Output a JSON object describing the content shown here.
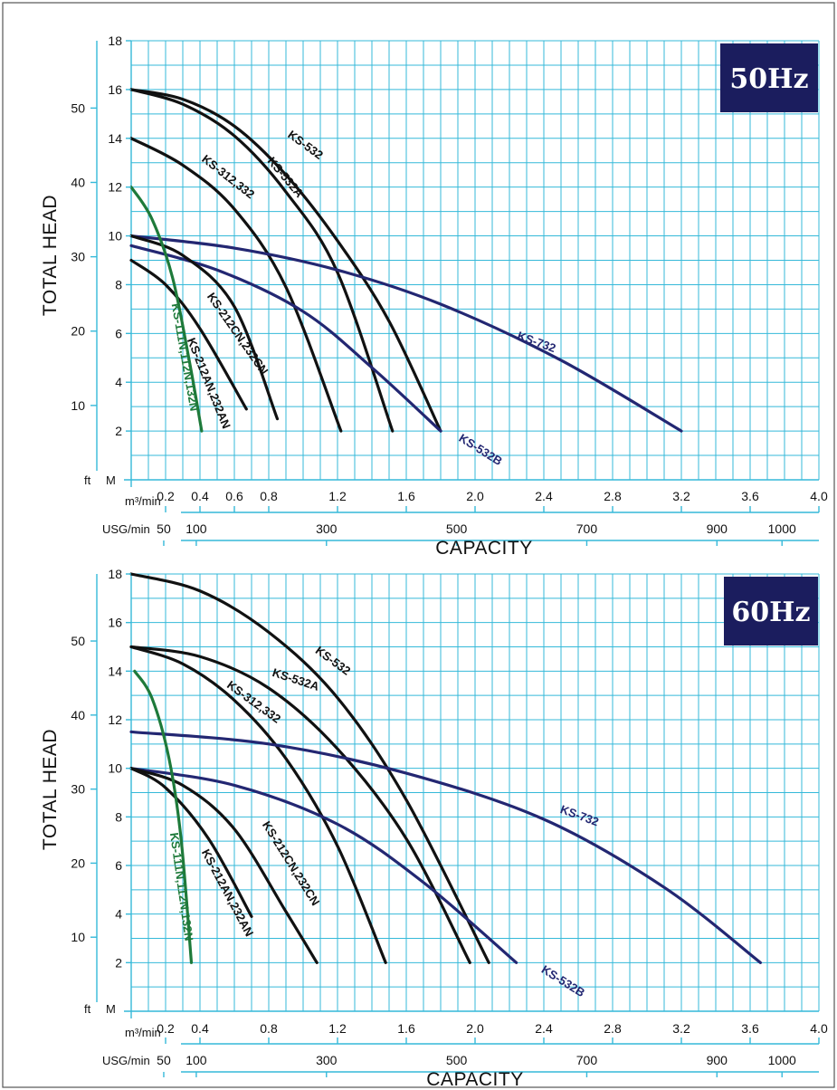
{
  "colors": {
    "grid": "#35b9d9",
    "black": "#111111",
    "navy": "#232772",
    "green": "#1e7a3a",
    "badge": "#1b1d5e"
  },
  "labels": {
    "y_title": "TOTAL HEAD",
    "x_title": "CAPACITY",
    "m3_unit": "m³/min",
    "usg_unit": "USG/min",
    "m_unit": "M",
    "ft_unit": "ft"
  },
  "chart_data": [
    {
      "type": "line",
      "title": "50Hz",
      "xlabel": "CAPACITY",
      "ylabel": "TOTAL HEAD",
      "xlim": [
        0,
        4.0
      ],
      "ylim": [
        0,
        18
      ],
      "grid": true,
      "x_ticks": [
        "0.2",
        "0.4",
        "0.6",
        "0.8",
        "1.2",
        "1.6",
        "2.0",
        "2.4",
        "2.8",
        "3.2",
        "3.6",
        "4.0"
      ],
      "y_ticks_m": [
        "2",
        "4",
        "6",
        "8",
        "10",
        "12",
        "14",
        "16",
        "18"
      ],
      "y_ticks_ft": [
        "10",
        "20",
        "30",
        "40",
        "50"
      ],
      "usg_ticks": [
        "50",
        "100",
        "300",
        "500",
        "700",
        "900",
        "1000"
      ],
      "series": [
        {
          "name": "KS-532",
          "color": "black",
          "points": [
            [
              0,
              16
            ],
            [
              0.3,
              15.6
            ],
            [
              0.6,
              14.5
            ],
            [
              0.9,
              12.5
            ],
            [
              1.2,
              9.8
            ],
            [
              1.5,
              6.5
            ],
            [
              1.8,
              2
            ]
          ],
          "label_pos": [
            1.0,
            13.6
          ],
          "label_angle": 36
        },
        {
          "name": "KS-532A",
          "color": "black",
          "points": [
            [
              0,
              16
            ],
            [
              0.3,
              15.4
            ],
            [
              0.6,
              14.1
            ],
            [
              0.9,
              11.8
            ],
            [
              1.2,
              8.5
            ],
            [
              1.52,
              2
            ]
          ],
          "label_pos": [
            0.88,
            12.3
          ],
          "label_angle": 50
        },
        {
          "name": "KS-312,332",
          "color": "black",
          "points": [
            [
              0,
              14
            ],
            [
              0.3,
              12.9
            ],
            [
              0.6,
              11.1
            ],
            [
              0.9,
              7.9
            ],
            [
              1.22,
              2
            ]
          ],
          "label_pos": [
            0.55,
            12.3
          ],
          "label_angle": 38
        },
        {
          "name": "KS-732",
          "color": "navy",
          "points": [
            [
              0,
              10
            ],
            [
              0.6,
              9.5
            ],
            [
              1.2,
              8.6
            ],
            [
              1.8,
              7.2
            ],
            [
              2.5,
              4.9
            ],
            [
              3.2,
              2
            ]
          ],
          "label_pos": [
            2.35,
            5.5
          ],
          "label_angle": 20
        },
        {
          "name": "KS-532B",
          "color": "navy",
          "points": [
            [
              0,
              9.6
            ],
            [
              0.5,
              8.6
            ],
            [
              1.0,
              6.9
            ],
            [
              1.4,
              4.6
            ],
            [
              1.8,
              2
            ]
          ],
          "label_pos": [
            2.02,
            1.1
          ],
          "label_angle": 32
        },
        {
          "name": "KS-212CN,232CN",
          "color": "black",
          "points": [
            [
              0,
              10
            ],
            [
              0.3,
              9.2
            ],
            [
              0.6,
              7.1
            ],
            [
              0.85,
              2.5
            ]
          ],
          "label_pos": [
            0.6,
            5.9
          ],
          "label_angle": 55
        },
        {
          "name": "KS-212AN,232AN",
          "color": "black",
          "points": [
            [
              0,
              9
            ],
            [
              0.2,
              8
            ],
            [
              0.4,
              6.2
            ],
            [
              0.67,
              2.9
            ]
          ],
          "label_pos": [
            0.43,
            3.9
          ],
          "label_angle": 68
        },
        {
          "name": "KS-111N,112N,132N",
          "color": "green",
          "points": [
            [
              0,
              12
            ],
            [
              0.12,
              10.7
            ],
            [
              0.24,
              8.3
            ],
            [
              0.34,
              4.8
            ],
            [
              0.41,
              2
            ]
          ],
          "label_pos": [
            0.29,
            5.0
          ],
          "label_angle": 80
        }
      ]
    },
    {
      "type": "line",
      "title": "60Hz",
      "xlabel": "CAPACITY",
      "ylabel": "TOTAL HEAD",
      "xlim": [
        0,
        4.0
      ],
      "ylim": [
        0,
        18
      ],
      "grid": true,
      "x_ticks": [
        "0.2",
        "0.4",
        "0.8",
        "1.2",
        "1.6",
        "2.0",
        "2.4",
        "2.8",
        "3.2",
        "3.6",
        "4.0"
      ],
      "y_ticks_m": [
        "2",
        "4",
        "6",
        "8",
        "10",
        "12",
        "14",
        "16",
        "18"
      ],
      "y_ticks_ft": [
        "10",
        "20",
        "30",
        "40",
        "50"
      ],
      "usg_ticks": [
        "50",
        "100",
        "300",
        "500",
        "700",
        "900",
        "1000"
      ],
      "series": [
        {
          "name": "KS-532",
          "color": "black",
          "points": [
            [
              0,
              18
            ],
            [
              0.4,
              17.3
            ],
            [
              0.8,
              15.6
            ],
            [
              1.2,
              12.9
            ],
            [
              1.6,
              8.7
            ],
            [
              2.08,
              2
            ]
          ],
          "label_pos": [
            1.16,
            14.3
          ],
          "label_angle": 36
        },
        {
          "name": "KS-532A",
          "color": "black",
          "points": [
            [
              0,
              15
            ],
            [
              0.4,
              14.6
            ],
            [
              0.8,
              13.3
            ],
            [
              1.2,
              10.8
            ],
            [
              1.6,
              7.1
            ],
            [
              1.97,
              2
            ]
          ],
          "label_pos": [
            0.95,
            13.5
          ],
          "label_angle": 18
        },
        {
          "name": "KS-312,332",
          "color": "black",
          "points": [
            [
              0,
              15
            ],
            [
              0.3,
              14.3
            ],
            [
              0.6,
              12.8
            ],
            [
              0.9,
              10.4
            ],
            [
              1.2,
              6.8
            ],
            [
              1.48,
              2
            ]
          ],
          "label_pos": [
            0.7,
            12.6
          ],
          "label_angle": 36
        },
        {
          "name": "KS-732",
          "color": "navy",
          "points": [
            [
              0,
              11.5
            ],
            [
              0.8,
              11
            ],
            [
              1.6,
              9.8
            ],
            [
              2.4,
              7.9
            ],
            [
              3.1,
              5.1
            ],
            [
              3.66,
              2
            ]
          ],
          "label_pos": [
            2.6,
            7.9
          ],
          "label_angle": 20
        },
        {
          "name": "KS-532B",
          "color": "navy",
          "points": [
            [
              0,
              10
            ],
            [
              0.6,
              9.3
            ],
            [
              1.2,
              7.7
            ],
            [
              1.7,
              5.3
            ],
            [
              2.24,
              2
            ]
          ],
          "label_pos": [
            2.5,
            1.1
          ],
          "label_angle": 32
        },
        {
          "name": "KS-212CN,232CN",
          "color": "black",
          "points": [
            [
              0,
              10
            ],
            [
              0.3,
              9.3
            ],
            [
              0.6,
              7.5
            ],
            [
              0.9,
              4.1
            ],
            [
              1.08,
              2
            ]
          ],
          "label_pos": [
            0.91,
            6.0
          ],
          "label_angle": 58
        },
        {
          "name": "KS-212AN,232AN",
          "color": "black",
          "points": [
            [
              0,
              10
            ],
            [
              0.2,
              9.2
            ],
            [
              0.45,
              7.1
            ],
            [
              0.7,
              3.9
            ]
          ],
          "label_pos": [
            0.54,
            4.8
          ],
          "label_angle": 62
        },
        {
          "name": "KS-111N,112N,132N",
          "color": "green",
          "points": [
            [
              0.02,
              14
            ],
            [
              0.12,
              12.9
            ],
            [
              0.22,
              10.4
            ],
            [
              0.29,
              7.1
            ],
            [
              0.35,
              2
            ]
          ],
          "label_pos": [
            0.27,
            5.1
          ],
          "label_angle": 82
        }
      ]
    }
  ]
}
